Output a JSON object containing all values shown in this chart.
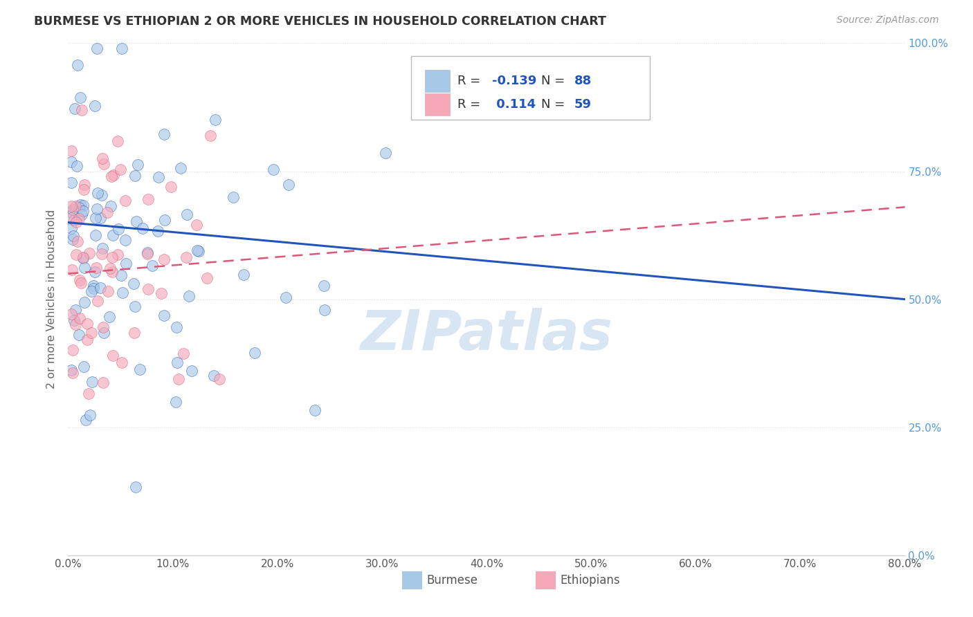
{
  "title": "BURMESE VS ETHIOPIAN 2 OR MORE VEHICLES IN HOUSEHOLD CORRELATION CHART",
  "source": "Source: ZipAtlas.com",
  "ylabel": "2 or more Vehicles in Household",
  "x_tick_labels": [
    "0.0%",
    "10.0%",
    "20.0%",
    "30.0%",
    "40.0%",
    "50.0%",
    "60.0%",
    "70.0%",
    "80.0%"
  ],
  "x_ticks": [
    0.0,
    10.0,
    20.0,
    30.0,
    40.0,
    50.0,
    60.0,
    70.0,
    80.0
  ],
  "y_tick_labels": [
    "0.0%",
    "25.0%",
    "50.0%",
    "75.0%",
    "100.0%"
  ],
  "y_ticks": [
    0.0,
    25.0,
    50.0,
    75.0,
    100.0
  ],
  "xlim": [
    0.0,
    80.0
  ],
  "ylim": [
    0.0,
    100.0
  ],
  "burmese_R": -0.139,
  "burmese_N": 88,
  "ethiopian_R": 0.114,
  "ethiopian_N": 59,
  "burmese_color": "#A8C8E8",
  "ethiopian_color": "#F4A8B8",
  "burmese_line_color": "#2255BB",
  "ethiopian_line_color": "#DD5577",
  "legend_label_burmese": "Burmese",
  "legend_label_ethiopian": "Ethiopians",
  "background_color": "#FFFFFF",
  "watermark": "ZIPatlas",
  "watermark_color": "#C8DCF0",
  "grid_color": "#DDDDDD",
  "title_color": "#333333",
  "source_color": "#999999",
  "ylabel_color": "#666666",
  "ytick_color": "#5599DD",
  "xtick_color": "#555555",
  "legend_r_color": "#2255BB",
  "legend_n_color": "#2255BB",
  "burmese_trendline": [
    65.0,
    50.0
  ],
  "ethiopian_trendline": [
    55.0,
    68.0
  ]
}
